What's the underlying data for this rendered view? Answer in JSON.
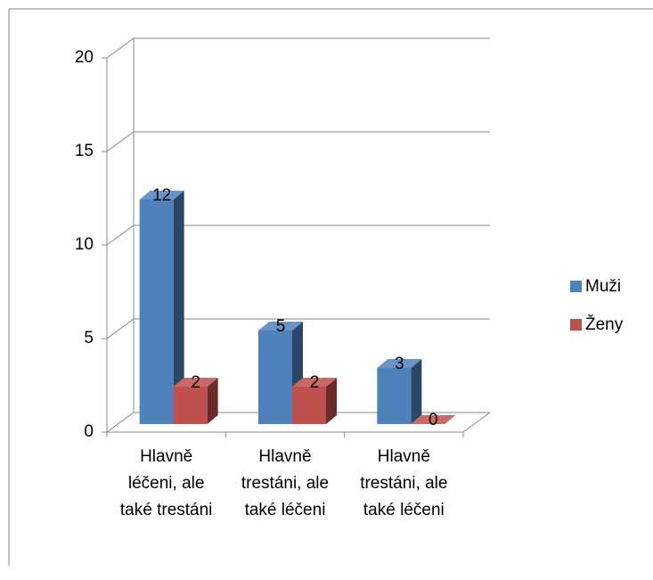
{
  "chart_data": {
    "type": "bar3d",
    "categories": [
      "Hlavně léčeni, ale také trestáni",
      "Hlavně trestáni, ale také léčeni",
      "Hlavně trestáni, ale také léčeni"
    ],
    "series": [
      {
        "name": "Muži",
        "color": "#4f81bd",
        "values": [
          12,
          5,
          3
        ]
      },
      {
        "name": "Ženy",
        "color": "#c0504d",
        "values": [
          2,
          2,
          0
        ]
      }
    ],
    "ylim": [
      0,
      20
    ],
    "yticks": [
      0,
      5,
      10,
      15,
      20
    ],
    "grid": true,
    "legend": "right"
  }
}
